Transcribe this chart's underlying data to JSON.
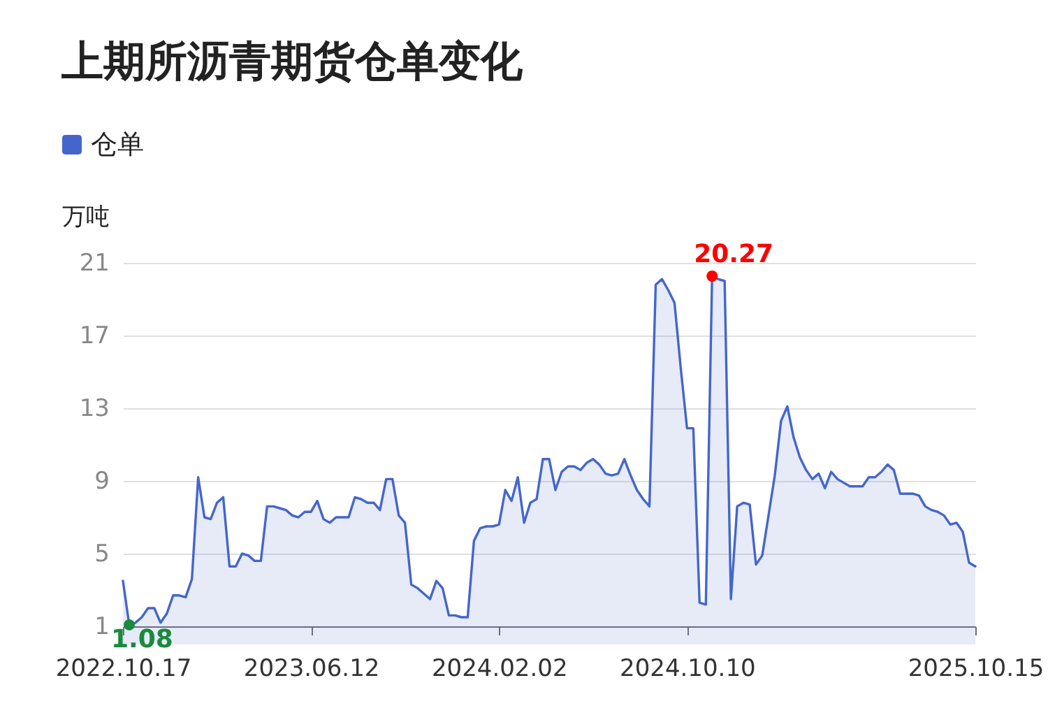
{
  "chart_data": {
    "type": "area",
    "title": "上期所沥青期货仓单变化",
    "ylabel": "万吨",
    "categories": [
      "2022.10.17",
      null,
      null,
      null,
      null,
      null,
      null,
      null,
      null,
      null,
      null,
      null,
      null,
      null,
      null,
      null,
      null,
      null,
      null,
      null,
      null,
      null,
      null,
      null,
      null,
      null,
      null,
      null,
      null,
      null,
      "2023.06.12",
      null,
      null,
      null,
      null,
      null,
      null,
      null,
      null,
      null,
      null,
      null,
      null,
      null,
      null,
      null,
      null,
      null,
      null,
      null,
      null,
      null,
      null,
      null,
      null,
      null,
      null,
      null,
      null,
      null,
      "2024.02.02",
      null,
      null,
      null,
      null,
      null,
      null,
      null,
      null,
      null,
      null,
      null,
      null,
      null,
      null,
      null,
      null,
      null,
      null,
      null,
      null,
      null,
      null,
      null,
      null,
      null,
      null,
      null,
      null,
      null,
      "2024.10.10",
      null,
      null,
      null,
      null,
      null,
      null,
      null,
      null,
      null,
      null,
      null,
      null,
      null,
      null,
      null,
      null,
      null,
      null,
      null,
      null,
      null,
      null,
      null,
      null,
      null,
      null,
      null,
      null,
      null,
      null,
      null,
      null,
      null,
      null,
      null,
      null,
      null,
      null,
      null,
      null,
      null,
      null,
      null,
      null,
      null,
      "2025.10.15"
    ],
    "series": [
      {
        "name": "仓单",
        "color": "#4466cc",
        "values": [
          3.5,
          1.08,
          1.2,
          1.5,
          2.0,
          2.0,
          1.2,
          1.7,
          2.7,
          2.7,
          2.6,
          3.6,
          9.2,
          7.0,
          6.9,
          7.8,
          8.1,
          4.3,
          4.3,
          5.0,
          4.9,
          4.6,
          4.6,
          7.6,
          7.6,
          7.5,
          7.4,
          7.1,
          7.0,
          7.3,
          7.3,
          7.9,
          6.9,
          6.7,
          7.0,
          7.0,
          7.0,
          8.1,
          8.0,
          7.8,
          7.8,
          7.4,
          9.1,
          9.1,
          7.1,
          6.7,
          3.3,
          3.1,
          2.8,
          2.5,
          3.5,
          3.1,
          1.6,
          1.6,
          1.5,
          1.5,
          5.7,
          6.4,
          6.5,
          6.5,
          6.6,
          8.5,
          7.9,
          9.2,
          6.7,
          7.8,
          8.0,
          10.2,
          10.2,
          8.5,
          9.5,
          9.8,
          9.8,
          9.6,
          10.0,
          10.2,
          9.9,
          9.4,
          9.3,
          9.4,
          10.2,
          9.3,
          8.5,
          8.0,
          7.6,
          19.8,
          20.1,
          19.5,
          18.8,
          15.2,
          11.9,
          11.9,
          2.3,
          2.2,
          20.27,
          20.1,
          20.0,
          2.5,
          7.6,
          7.8,
          7.7,
          4.4,
          4.9,
          7.1,
          9.3,
          12.3,
          13.1,
          11.4,
          10.3,
          9.6,
          9.1,
          9.4,
          8.6,
          9.5,
          9.1,
          8.9,
          8.7,
          8.7,
          8.7,
          9.2,
          9.2,
          9.5,
          9.9,
          9.6,
          8.3,
          8.3,
          8.3,
          8.2,
          7.6,
          7.4,
          7.3,
          7.1,
          6.6,
          6.7,
          6.2,
          4.5,
          4.3
        ],
        "value_labels": [
          null,
          "1.08",
          null,
          null,
          null,
          null,
          null,
          null,
          null,
          null,
          null,
          null,
          null,
          null,
          null,
          null,
          null,
          null,
          null,
          null,
          null,
          null,
          null,
          null,
          null,
          null,
          null,
          null,
          null,
          null,
          null,
          null,
          null,
          null,
          null,
          null,
          null,
          null,
          null,
          null,
          null,
          null,
          null,
          null,
          null,
          null,
          null,
          null,
          null,
          null,
          null,
          null,
          null,
          null,
          null,
          null,
          null,
          null,
          null,
          null,
          null,
          null,
          null,
          null,
          null,
          null,
          null,
          null,
          null,
          null,
          null,
          null,
          null,
          null,
          null,
          null,
          null,
          null,
          null,
          null,
          null,
          null,
          null,
          null,
          null,
          null,
          null,
          null,
          null,
          null,
          null,
          null,
          null,
          null,
          "20.27",
          null,
          null,
          null,
          null,
          null,
          null,
          null,
          null,
          null,
          null,
          null,
          null,
          null,
          null,
          null,
          null,
          null,
          null,
          null,
          null,
          null,
          null,
          null,
          null,
          null,
          null,
          null,
          null,
          null,
          null,
          null,
          null,
          null,
          null,
          null,
          null,
          null,
          null,
          null,
          null,
          null,
          null
        ]
      }
    ],
    "ylim": [
      1,
      21
    ],
    "yticks": [
      1,
      5,
      9,
      13,
      17,
      21
    ],
    "grid": "y",
    "legend": "top left"
  }
}
